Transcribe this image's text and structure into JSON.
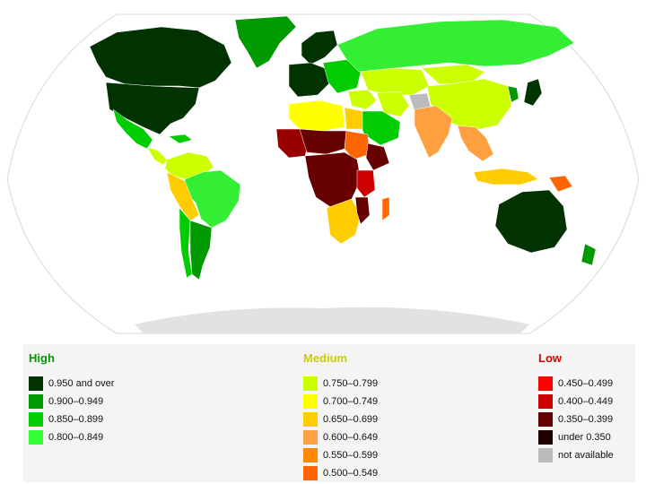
{
  "map": {
    "ocean_color": "#ffffff",
    "outline_color": "#d8d8d8",
    "antarctica_color": "#e2e2e2",
    "regions": [
      {
        "id": "greenland",
        "color": "#009900"
      },
      {
        "id": "canada",
        "color": "#003300"
      },
      {
        "id": "usa",
        "color": "#003300"
      },
      {
        "id": "mexico",
        "color": "#00cc00"
      },
      {
        "id": "central-america",
        "color": "#ccff00"
      },
      {
        "id": "caribbean",
        "color": "#00cc00"
      },
      {
        "id": "south-america-north",
        "color": "#ccff00"
      },
      {
        "id": "brazil",
        "color": "#33ee33"
      },
      {
        "id": "andes",
        "color": "#ffcc00"
      },
      {
        "id": "argentina",
        "color": "#009900"
      },
      {
        "id": "chile",
        "color": "#00cc00"
      },
      {
        "id": "western-europe",
        "color": "#003300"
      },
      {
        "id": "eastern-europe",
        "color": "#00cc00"
      },
      {
        "id": "scandinavia",
        "color": "#003300"
      },
      {
        "id": "russia",
        "color": "#33ee33"
      },
      {
        "id": "central-asia",
        "color": "#ccff00"
      },
      {
        "id": "china",
        "color": "#ccff00"
      },
      {
        "id": "mongolia",
        "color": "#ccff00"
      },
      {
        "id": "japan",
        "color": "#003300"
      },
      {
        "id": "korea",
        "color": "#009900"
      },
      {
        "id": "middle-east",
        "color": "#ccff00"
      },
      {
        "id": "arabia",
        "color": "#00cc00"
      },
      {
        "id": "iran",
        "color": "#ccff00"
      },
      {
        "id": "afghanistan",
        "color": "#bbbbbb"
      },
      {
        "id": "india",
        "color": "#ffa040"
      },
      {
        "id": "southeast-asia",
        "color": "#ffa040"
      },
      {
        "id": "indonesia",
        "color": "#ffcc00"
      },
      {
        "id": "png",
        "color": "#ff6600"
      },
      {
        "id": "australia",
        "color": "#003300"
      },
      {
        "id": "new-zealand",
        "color": "#009900"
      },
      {
        "id": "north-africa",
        "color": "#ffff00"
      },
      {
        "id": "egypt",
        "color": "#ffcc00"
      },
      {
        "id": "west-africa",
        "color": "#990000"
      },
      {
        "id": "sahel",
        "color": "#660000"
      },
      {
        "id": "sudan",
        "color": "#ff6600"
      },
      {
        "id": "ethiopia",
        "color": "#660000"
      },
      {
        "id": "central-africa",
        "color": "#660000"
      },
      {
        "id": "east-africa",
        "color": "#cc0000"
      },
      {
        "id": "southern-africa",
        "color": "#ffcc00"
      },
      {
        "id": "mozambique",
        "color": "#660000"
      },
      {
        "id": "madagascar",
        "color": "#ff6600"
      }
    ]
  },
  "legend": {
    "high": {
      "heading": "High",
      "heading_color": "#009900",
      "items": [
        {
          "label": "0.950 and over",
          "color": "#003300"
        },
        {
          "label": "0.900–0.949",
          "color": "#009900"
        },
        {
          "label": "0.850–0.899",
          "color": "#00cc00"
        },
        {
          "label": "0.800–0.849",
          "color": "#33ff33"
        }
      ]
    },
    "medium": {
      "heading": "Medium",
      "heading_color": "#cccc00",
      "items": [
        {
          "label": "0.750–0.799",
          "color": "#ccff00"
        },
        {
          "label": "0.700–0.749",
          "color": "#ffff00"
        },
        {
          "label": "0.650–0.699",
          "color": "#ffcc00"
        },
        {
          "label": "0.600–0.649",
          "color": "#ffa040"
        },
        {
          "label": "0.550–0.599",
          "color": "#ff8800"
        },
        {
          "label": "0.500–0.549",
          "color": "#ff6600"
        }
      ]
    },
    "low": {
      "heading": "Low",
      "heading_color": "#dd0000",
      "items": [
        {
          "label": "0.450–0.499",
          "color": "#ff0000"
        },
        {
          "label": "0.400–0.449",
          "color": "#cc0000"
        },
        {
          "label": "0.350–0.399",
          "color": "#660000"
        },
        {
          "label": "under 0.350",
          "color": "#220000"
        },
        {
          "label": "not available",
          "color": "#bbbbbb"
        }
      ]
    }
  }
}
